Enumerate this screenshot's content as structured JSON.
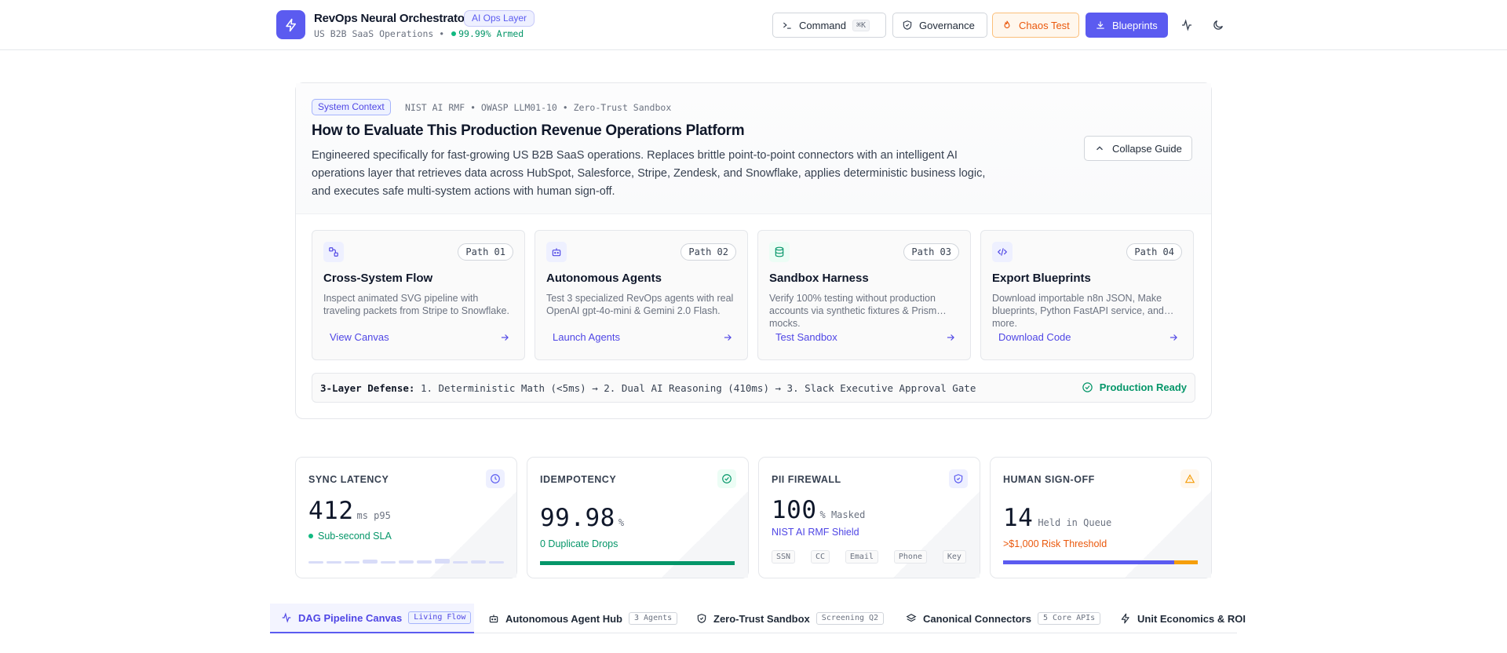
{
  "header": {
    "title": "RevOps Neural Orchestrator",
    "badge": "AI Ops Layer",
    "subtitle_prefix": "US B2B SaaS Operations •",
    "subtitle_status": "99.99% Armed",
    "buttons": {
      "command": "Command",
      "command_shortcut": "⌘K",
      "governance": "Governance",
      "chaos": "Chaos Test",
      "blueprints": "Blueprints"
    }
  },
  "guide": {
    "badge": "System Context",
    "tags": "NIST AI RMF • OWASP LLM01-10 • Zero-Trust Sandbox",
    "title": "How to Evaluate This Production Revenue Operations Platform",
    "description": "Engineered specifically for fast-growing US B2B SaaS operations. Replaces brittle point-to-point connectors with an intelligent AI operations layer that retrieves data across HubSpot, Salesforce, Stripe, Zendesk, and Snowflake, applies deterministic business logic, and executes safe multi-system actions with human sign-off.",
    "collapse_label": "Collapse Guide",
    "paths": [
      {
        "num": "Path 01",
        "icon": "flow-icon",
        "title": "Cross-System Flow",
        "desc": "Inspect animated SVG pipeline with traveling packets from Stripe to Snowflake.",
        "link": "View Canvas"
      },
      {
        "num": "Path 02",
        "icon": "bot-icon",
        "title": "Autonomous Agents",
        "desc": "Test 3 specialized RevOps agents with real OpenAI gpt-4o-mini & Gemini 2.0 Flash.",
        "link": "Launch Agents"
      },
      {
        "num": "Path 03",
        "icon": "database-icon",
        "title": "Sandbox Harness",
        "desc": "Verify 100% testing without production accounts via synthetic fixtures & Prism mocks.",
        "link": "Test Sandbox"
      },
      {
        "num": "Path 04",
        "icon": "code-icon",
        "title": "Export Blueprints",
        "desc": "Download importable n8n JSON, Make blueprints, Python FastAPI service, and more.",
        "link": "Download Code"
      }
    ],
    "defense_label": "3-Layer Defense:",
    "defense_text": "1. Deterministic Math (<5ms) → 2. Dual AI Reasoning (410ms) → 3. Slack Executive Approval Gate",
    "production_ready": "Production Ready"
  },
  "kpis": {
    "latency": {
      "label": "SYNC LATENCY",
      "value": "412",
      "unit": "ms p95",
      "sub": "Sub-second SLA",
      "spark": [
        0.3,
        0.3,
        0.2,
        0.5,
        0.3,
        0.4,
        0.4,
        0.6,
        0.3,
        0.4,
        0.3
      ]
    },
    "idempotency": {
      "label": "IDEMPOTENCY",
      "value": "99.98",
      "unit": "%",
      "sub": "0 Duplicate Drops",
      "progress": 1.0
    },
    "pii": {
      "label": "PII FIREWALL",
      "value": "100",
      "unit": "% Masked",
      "sub": "NIST AI RMF Shield",
      "tags": [
        "SSN",
        "CC",
        "Email",
        "Phone",
        "Key"
      ]
    },
    "signoff": {
      "label": "HUMAN SIGN-OFF",
      "value": "14",
      "unit": "Held in Queue",
      "sub": ">$1,000 Risk Threshold",
      "progress_primary": 0.88,
      "progress_warn": 0.12
    }
  },
  "tabs": [
    {
      "label": "DAG Pipeline Canvas",
      "badge": "Living Flow",
      "icon": "activity-icon"
    },
    {
      "label": "Autonomous Agent Hub",
      "badge": "3 Agents",
      "icon": "bot-icon"
    },
    {
      "label": "Zero-Trust Sandbox",
      "badge": "Screening Q2",
      "icon": "shield-icon"
    },
    {
      "label": "Canonical Connectors",
      "badge": "5 Core APIs",
      "icon": "layers-icon"
    },
    {
      "label": "Unit Economics & ROI",
      "badge": "",
      "icon": "zap-icon"
    }
  ],
  "colors": {
    "accent": "#5b5bf0",
    "success": "#059669",
    "warning": "#ea580c"
  }
}
